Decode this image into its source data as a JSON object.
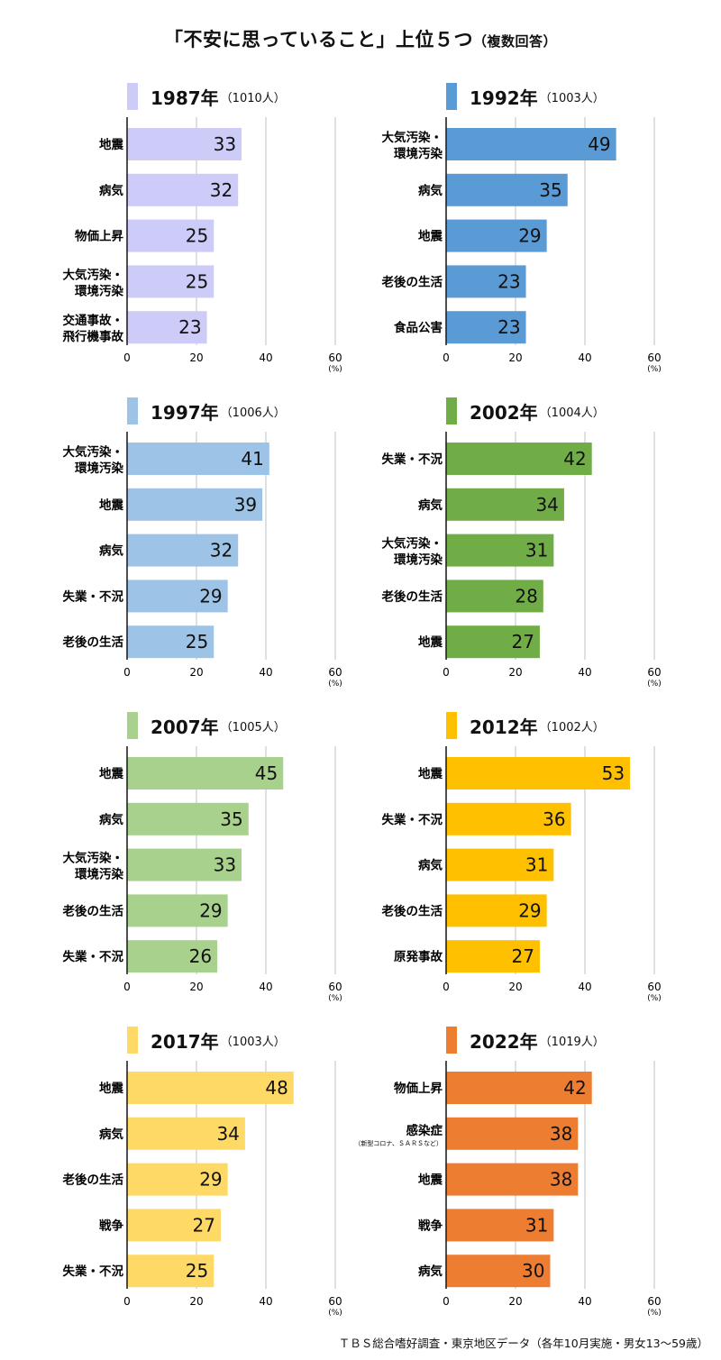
{
  "title": "「不安に思っていること」上位５つ",
  "title_suffix": "（複数回答）",
  "source": "ＴＢＳ総合嗜好調査・東京地区データ（各年10月実施・男女13〜59歳）",
  "chart_data": [
    {
      "type": "bar",
      "orientation": "horizontal",
      "year": "1987年",
      "respondents": "（1010人）",
      "color": "#cdcbf8",
      "categories": [
        "地震",
        "病気",
        "物価上昇",
        "大気汚染・\n環境汚染",
        "交通事故・\n飛行機事故"
      ],
      "values": [
        33,
        32,
        25,
        25,
        23
      ],
      "xticks": [
        "0",
        "20",
        "40",
        "60"
      ],
      "unit": "(%)",
      "xlim": [
        0,
        60
      ]
    },
    {
      "type": "bar",
      "orientation": "horizontal",
      "year": "1992年",
      "respondents": "（1003人）",
      "color": "#5b9bd5",
      "categories": [
        "大気汚染・\n環境汚染",
        "病気",
        "地震",
        "老後の生活",
        "食品公害"
      ],
      "values": [
        49,
        35,
        29,
        23,
        23
      ],
      "xticks": [
        "0",
        "20",
        "40",
        "60"
      ],
      "unit": "(%)",
      "xlim": [
        0,
        60
      ]
    },
    {
      "type": "bar",
      "orientation": "horizontal",
      "year": "1997年",
      "respondents": "（1006人）",
      "color": "#9dc3e6",
      "categories": [
        "大気汚染・\n環境汚染",
        "地震",
        "病気",
        "失業・不況",
        "老後の生活"
      ],
      "values": [
        41,
        39,
        32,
        29,
        25
      ],
      "xticks": [
        "0",
        "20",
        "40",
        "60"
      ],
      "unit": "(%)",
      "xlim": [
        0,
        60
      ]
    },
    {
      "type": "bar",
      "orientation": "horizontal",
      "year": "2002年",
      "respondents": "（1004人）",
      "color": "#70ad47",
      "categories": [
        "失業・不況",
        "病気",
        "大気汚染・\n環境汚染",
        "老後の生活",
        "地震"
      ],
      "values": [
        42,
        34,
        31,
        28,
        27
      ],
      "xticks": [
        "0",
        "20",
        "40",
        "60"
      ],
      "unit": "(%)",
      "xlim": [
        0,
        60
      ]
    },
    {
      "type": "bar",
      "orientation": "horizontal",
      "year": "2007年",
      "respondents": "（1005人）",
      "color": "#a9d18e",
      "categories": [
        "地震",
        "病気",
        "大気汚染・\n環境汚染",
        "老後の生活",
        "失業・不況"
      ],
      "values": [
        45,
        35,
        33,
        29,
        26
      ],
      "xticks": [
        "0",
        "20",
        "40",
        "60"
      ],
      "unit": "(%)",
      "xlim": [
        0,
        60
      ]
    },
    {
      "type": "bar",
      "orientation": "horizontal",
      "year": "2012年",
      "respondents": "（1002人）",
      "color": "#ffc000",
      "categories": [
        "地震",
        "失業・不況",
        "病気",
        "老後の生活",
        "原発事故"
      ],
      "values": [
        53,
        36,
        31,
        29,
        27
      ],
      "xticks": [
        "0",
        "20",
        "40",
        "60"
      ],
      "unit": "(%)",
      "xlim": [
        0,
        60
      ]
    },
    {
      "type": "bar",
      "orientation": "horizontal",
      "year": "2017年",
      "respondents": "（1003人）",
      "color": "#ffd966",
      "categories": [
        "地震",
        "病気",
        "老後の生活",
        "戦争",
        "失業・不況"
      ],
      "values": [
        48,
        34,
        29,
        27,
        25
      ],
      "xticks": [
        "0",
        "20",
        "40",
        "60"
      ],
      "unit": "(%)",
      "xlim": [
        0,
        60
      ]
    },
    {
      "type": "bar",
      "orientation": "horizontal",
      "year": "2022年",
      "respondents": "（1019人）",
      "color": "#ed7d31",
      "categories": [
        "物価上昇",
        "感染症",
        "地震",
        "戦争",
        "病気"
      ],
      "values": [
        42,
        38,
        38,
        31,
        30
      ],
      "category_notes": [
        "",
        "（新型コロナ、ＳＡＲＳなど）",
        "",
        "",
        ""
      ],
      "xticks": [
        "0",
        "20",
        "40",
        "60"
      ],
      "unit": "(%)",
      "xlim": [
        0,
        60
      ]
    }
  ]
}
